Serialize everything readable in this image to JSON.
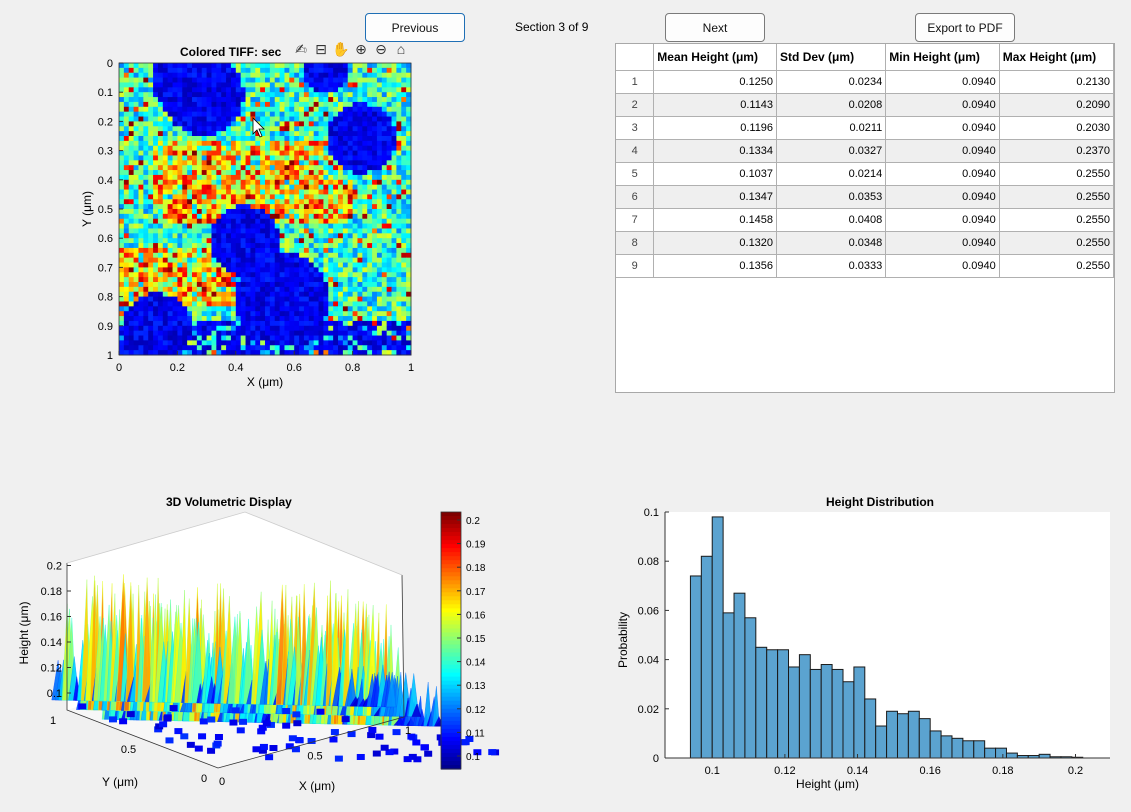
{
  "nav": {
    "previous_label": "Previous",
    "section_text": "Section 3 of 9",
    "next_label": "Next",
    "export_label": "Export to PDF"
  },
  "colors": {
    "colormap": [
      "#00007f",
      "#0000ff",
      "#007fff",
      "#00ffff",
      "#7fff7f",
      "#ffff00",
      "#ff7f00",
      "#ff0000",
      "#7f0000"
    ],
    "bar_fill": "#5ba3d0",
    "bar_edge": "#1a1a1a"
  },
  "image_plot": {
    "title": "Colored TIFF: sec",
    "xlabel": "X (μm)",
    "ylabel": "Y (μm)",
    "xticks": [
      "0",
      "0.2",
      "0.4",
      "0.6",
      "0.8",
      "1"
    ],
    "yticks": [
      "0",
      "0.1",
      "0.2",
      "0.3",
      "0.4",
      "0.5",
      "0.6",
      "0.7",
      "0.8",
      "0.9",
      "1"
    ],
    "toolbar_icons": [
      "brush-icon",
      "data-tip-icon",
      "pan-hand-icon",
      "zoom-in-icon",
      "zoom-out-icon",
      "home-icon"
    ]
  },
  "stats_table": {
    "columns": [
      "",
      "Mean Height (μm)",
      "Std Dev (μm)",
      "Min Height (μm)",
      "Max Height (μm)"
    ],
    "rows": [
      [
        "1",
        "0.1250",
        "0.0234",
        "0.0940",
        "0.2130"
      ],
      [
        "2",
        "0.1143",
        "0.0208",
        "0.0940",
        "0.2090"
      ],
      [
        "3",
        "0.1196",
        "0.0211",
        "0.0940",
        "0.2030"
      ],
      [
        "4",
        "0.1334",
        "0.0327",
        "0.0940",
        "0.2370"
      ],
      [
        "5",
        "0.1037",
        "0.0214",
        "0.0940",
        "0.2550"
      ],
      [
        "6",
        "0.1347",
        "0.0353",
        "0.0940",
        "0.2550"
      ],
      [
        "7",
        "0.1458",
        "0.0408",
        "0.0940",
        "0.2550"
      ],
      [
        "8",
        "0.1320",
        "0.0348",
        "0.0940",
        "0.2550"
      ],
      [
        "9",
        "0.1356",
        "0.0333",
        "0.0940",
        "0.2550"
      ]
    ]
  },
  "volumetric": {
    "title": "3D Volumetric Display",
    "zlabel": "Height (μm)",
    "xlabel": "X (μm)",
    "ylabel": "Y (μm)",
    "zticks": [
      "0.1",
      "0.12",
      "0.14",
      "0.16",
      "0.18",
      "0.2"
    ],
    "xticks": [
      "0",
      "0.5",
      "1"
    ],
    "yticks": [
      "0",
      "0.5",
      "1"
    ],
    "colorbar_ticks": [
      "0.1",
      "0.11",
      "0.12",
      "0.13",
      "0.14",
      "0.15",
      "0.16",
      "0.17",
      "0.18",
      "0.19",
      "0.2"
    ]
  },
  "chart_data": {
    "type": "bar",
    "title": "Height Distribution",
    "xlabel": "Height (μm)",
    "ylabel": "Probability",
    "xlim": [
      0.087,
      0.2095
    ],
    "ylim": [
      0,
      0.1
    ],
    "xticks": [
      "0.1",
      "0.12",
      "0.14",
      "0.16",
      "0.18",
      "0.2"
    ],
    "yticks": [
      "0",
      "0.02",
      "0.04",
      "0.06",
      "0.08",
      "0.1"
    ],
    "bin_width": 0.003,
    "bin_start": 0.094,
    "values": [
      0.074,
      0.082,
      0.098,
      0.059,
      0.067,
      0.057,
      0.045,
      0.044,
      0.044,
      0.037,
      0.042,
      0.036,
      0.038,
      0.036,
      0.031,
      0.037,
      0.024,
      0.013,
      0.019,
      0.018,
      0.019,
      0.016,
      0.011,
      0.009,
      0.008,
      0.007,
      0.007,
      0.004,
      0.004,
      0.002,
      0.001,
      0.001,
      0.0015,
      0.0005,
      0.0005,
      0.0003
    ]
  }
}
